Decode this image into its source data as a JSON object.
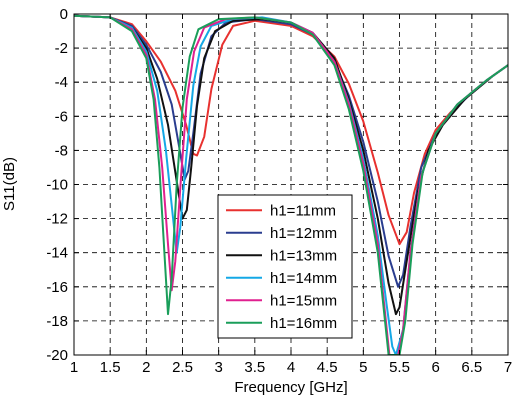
{
  "chart_data": {
    "type": "line",
    "xlabel": "Frequency [GHz]",
    "ylabel": "S11(dB)",
    "xlim": [
      1,
      7
    ],
    "ylim": [
      -20,
      0
    ],
    "xticks": [
      "1",
      "1.5",
      "2",
      "2.5",
      "3",
      "3.5",
      "4",
      "4.5",
      "5",
      "5.5",
      "6",
      "6.5",
      "7"
    ],
    "yticks": [
      "0",
      "-2",
      "-4",
      "-6",
      "-8",
      "-10",
      "-12",
      "-14",
      "-16",
      "-18",
      "-20"
    ],
    "grid": true,
    "legend_position": "lower-center",
    "series": [
      {
        "name": "h1=11mm",
        "color": "#e8312f",
        "points": [
          [
            1,
            -0.1
          ],
          [
            1.5,
            -0.2
          ],
          [
            1.8,
            -0.6
          ],
          [
            2,
            -1.6
          ],
          [
            2.2,
            -2.8
          ],
          [
            2.4,
            -4.5
          ],
          [
            2.55,
            -6.5
          ],
          [
            2.65,
            -8.2
          ],
          [
            2.7,
            -8.3
          ],
          [
            2.8,
            -7.2
          ],
          [
            2.9,
            -4.4
          ],
          [
            3.05,
            -1.8
          ],
          [
            3.2,
            -0.7
          ],
          [
            3.5,
            -0.4
          ],
          [
            4,
            -0.7
          ],
          [
            4.3,
            -1.3
          ],
          [
            4.6,
            -2.5
          ],
          [
            4.8,
            -4.1
          ],
          [
            5,
            -6.3
          ],
          [
            5.2,
            -9.3
          ],
          [
            5.35,
            -11.8
          ],
          [
            5.5,
            -13.5
          ],
          [
            5.6,
            -12.8
          ],
          [
            5.7,
            -10.5
          ],
          [
            5.85,
            -8.2
          ],
          [
            6,
            -6.8
          ],
          [
            6.2,
            -5.8
          ],
          [
            6.5,
            -4.6
          ],
          [
            6.8,
            -3.6
          ],
          [
            7,
            -3
          ]
        ]
      },
      {
        "name": "h1=12mm",
        "color": "#2a3d8f",
        "points": [
          [
            1,
            -0.1
          ],
          [
            1.5,
            -0.2
          ],
          [
            1.8,
            -0.7
          ],
          [
            2,
            -1.8
          ],
          [
            2.2,
            -3.4
          ],
          [
            2.35,
            -5.3
          ],
          [
            2.45,
            -7.7
          ],
          [
            2.53,
            -9.7
          ],
          [
            2.58,
            -9.2
          ],
          [
            2.65,
            -7
          ],
          [
            2.75,
            -3.5
          ],
          [
            2.9,
            -1.3
          ],
          [
            3.1,
            -0.5
          ],
          [
            3.5,
            -0.3
          ],
          [
            4,
            -0.6
          ],
          [
            4.3,
            -1.2
          ],
          [
            4.6,
            -2.8
          ],
          [
            4.8,
            -4.8
          ],
          [
            5,
            -7.5
          ],
          [
            5.2,
            -11
          ],
          [
            5.35,
            -14.2
          ],
          [
            5.48,
            -16
          ],
          [
            5.55,
            -15.3
          ],
          [
            5.65,
            -12.5
          ],
          [
            5.8,
            -9
          ],
          [
            6,
            -7
          ],
          [
            6.2,
            -5.9
          ],
          [
            6.5,
            -4.6
          ],
          [
            6.8,
            -3.6
          ],
          [
            7,
            -3
          ]
        ]
      },
      {
        "name": "h1=13mm",
        "color": "#111111",
        "points": [
          [
            1,
            -0.1
          ],
          [
            1.5,
            -0.2
          ],
          [
            1.8,
            -0.8
          ],
          [
            2,
            -2
          ],
          [
            2.15,
            -3.8
          ],
          [
            2.3,
            -6.5
          ],
          [
            2.42,
            -9.8
          ],
          [
            2.5,
            -12
          ],
          [
            2.56,
            -11.5
          ],
          [
            2.62,
            -9
          ],
          [
            2.7,
            -5.4
          ],
          [
            2.8,
            -2.6
          ],
          [
            2.95,
            -1
          ],
          [
            3.2,
            -0.4
          ],
          [
            3.6,
            -0.3
          ],
          [
            4,
            -0.5
          ],
          [
            4.3,
            -1.1
          ],
          [
            4.6,
            -2.6
          ],
          [
            4.8,
            -5
          ],
          [
            5,
            -8
          ],
          [
            5.2,
            -12
          ],
          [
            5.35,
            -15.8
          ],
          [
            5.45,
            -17.6
          ],
          [
            5.5,
            -17.2
          ],
          [
            5.6,
            -14.5
          ],
          [
            5.75,
            -10.5
          ],
          [
            5.9,
            -8
          ],
          [
            6.1,
            -6.5
          ],
          [
            6.4,
            -5
          ],
          [
            6.8,
            -3.6
          ],
          [
            7,
            -3
          ]
        ]
      },
      {
        "name": "h1=14mm",
        "color": "#14a8e6",
        "points": [
          [
            1,
            -0.1
          ],
          [
            1.5,
            -0.2
          ],
          [
            1.8,
            -0.8
          ],
          [
            2,
            -2.2
          ],
          [
            2.15,
            -4.5
          ],
          [
            2.27,
            -8
          ],
          [
            2.37,
            -12
          ],
          [
            2.42,
            -14
          ],
          [
            2.47,
            -12.5
          ],
          [
            2.55,
            -8.5
          ],
          [
            2.65,
            -4.2
          ],
          [
            2.75,
            -1.9
          ],
          [
            2.9,
            -0.7
          ],
          [
            3.2,
            -0.3
          ],
          [
            3.6,
            -0.2
          ],
          [
            4,
            -0.5
          ],
          [
            4.3,
            -1.1
          ],
          [
            4.6,
            -2.8
          ],
          [
            4.8,
            -5.2
          ],
          [
            5,
            -8.5
          ],
          [
            5.2,
            -13
          ],
          [
            5.32,
            -17
          ],
          [
            5.4,
            -19.5
          ],
          [
            5.45,
            -20
          ],
          [
            5.55,
            -18.5
          ],
          [
            5.65,
            -14
          ],
          [
            5.8,
            -9.5
          ],
          [
            6,
            -7
          ],
          [
            6.3,
            -5.3
          ],
          [
            6.7,
            -3.9
          ],
          [
            7,
            -3
          ]
        ]
      },
      {
        "name": "h1=15mm",
        "color": "#e0208f",
        "points": [
          [
            1,
            -0.1
          ],
          [
            1.5,
            -0.2
          ],
          [
            1.8,
            -0.9
          ],
          [
            2,
            -2.4
          ],
          [
            2.12,
            -5
          ],
          [
            2.22,
            -9
          ],
          [
            2.3,
            -13.5
          ],
          [
            2.35,
            -16.2
          ],
          [
            2.4,
            -14.5
          ],
          [
            2.48,
            -9.5
          ],
          [
            2.56,
            -5
          ],
          [
            2.66,
            -2.2
          ],
          [
            2.8,
            -0.8
          ],
          [
            3.1,
            -0.3
          ],
          [
            3.5,
            -0.2
          ],
          [
            4,
            -0.5
          ],
          [
            4.3,
            -1.1
          ],
          [
            4.6,
            -2.8
          ],
          [
            4.8,
            -5.3
          ],
          [
            5,
            -8.8
          ],
          [
            5.2,
            -13.5
          ],
          [
            5.3,
            -17.5
          ],
          [
            5.36,
            -20
          ],
          [
            5.48,
            -20
          ],
          [
            5.55,
            -18.5
          ],
          [
            5.65,
            -14
          ],
          [
            5.8,
            -9.5
          ],
          [
            6,
            -7
          ],
          [
            6.3,
            -5.3
          ],
          [
            6.7,
            -3.9
          ],
          [
            7,
            -3
          ]
        ]
      },
      {
        "name": "h1=16mm",
        "color": "#1a9e5a",
        "points": [
          [
            1,
            -0.1
          ],
          [
            1.5,
            -0.2
          ],
          [
            1.8,
            -1
          ],
          [
            2,
            -2.6
          ],
          [
            2.1,
            -5
          ],
          [
            2.18,
            -9
          ],
          [
            2.25,
            -14
          ],
          [
            2.3,
            -17.6
          ],
          [
            2.35,
            -15.5
          ],
          [
            2.42,
            -10
          ],
          [
            2.5,
            -5.5
          ],
          [
            2.6,
            -2.5
          ],
          [
            2.72,
            -0.9
          ],
          [
            3,
            -0.3
          ],
          [
            3.5,
            -0.2
          ],
          [
            4,
            -0.5
          ],
          [
            4.3,
            -1.2
          ],
          [
            4.6,
            -3
          ],
          [
            4.8,
            -5.6
          ],
          [
            5,
            -9.2
          ],
          [
            5.2,
            -14
          ],
          [
            5.3,
            -18
          ],
          [
            5.35,
            -20
          ],
          [
            5.5,
            -20
          ],
          [
            5.58,
            -18
          ],
          [
            5.68,
            -13.5
          ],
          [
            5.82,
            -9.3
          ],
          [
            6,
            -7
          ],
          [
            6.3,
            -5.3
          ],
          [
            6.7,
            -3.9
          ],
          [
            7,
            -3
          ]
        ]
      }
    ]
  }
}
